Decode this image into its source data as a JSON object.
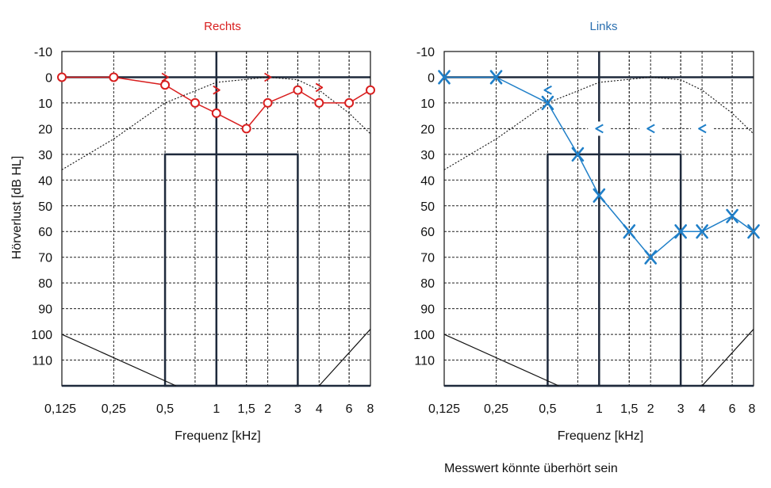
{
  "colors": {
    "right": "#d81e1e",
    "left": "#1f7fc8",
    "left_title": "#2a6fb0",
    "frame": "#1f2a3c",
    "grid": "#222222",
    "ink": "#111111"
  },
  "ylabel": "Hörverlust [dB HL]",
  "note": "Messwert könnte überhört sein",
  "chart_data": [
    {
      "type": "line",
      "title": "Rechts",
      "xlabel": "Frequenz [kHz]",
      "ylabel": "Hörverlust [dB HL]",
      "x_ticks": [
        "0,125",
        "0,25",
        "0,5",
        "1",
        "1,5",
        "2",
        "3",
        "4",
        "6",
        "8"
      ],
      "y_ticks": [
        "-10",
        "0",
        "10",
        "20",
        "30",
        "40",
        "50",
        "60",
        "70",
        "80",
        "90",
        "100",
        "110"
      ],
      "ylim": [
        -10,
        120
      ],
      "y_inverted": true,
      "x_scale": "log2",
      "grid": true,
      "series": [
        {
          "marker": "circle",
          "x": [
            0.125,
            0.25,
            0.5,
            0.75,
            1,
            1.5,
            2,
            3,
            4,
            6,
            8
          ],
          "y": [
            0,
            0,
            3,
            10,
            14,
            20,
            10,
            5,
            10,
            10,
            5
          ]
        },
        {
          "marker": "bone-conduction-right",
          "x": [
            0.5,
            1,
            2,
            4
          ],
          "y": [
            0,
            5,
            0,
            4
          ]
        }
      ]
    },
    {
      "type": "line",
      "title": "Links",
      "xlabel": "Frequenz [kHz]",
      "ylabel": "",
      "x_ticks": [
        "0,125",
        "0,25",
        "0,5",
        "1",
        "1,5",
        "2",
        "3",
        "4",
        "6",
        "8"
      ],
      "y_ticks": [
        "-10",
        "0",
        "10",
        "20",
        "30",
        "40",
        "50",
        "60",
        "70",
        "80",
        "90",
        "100",
        "110"
      ],
      "ylim": [
        -10,
        120
      ],
      "y_inverted": true,
      "x_scale": "log2",
      "grid": true,
      "series": [
        {
          "marker": "x",
          "x": [
            0.125,
            0.25,
            0.5,
            0.75,
            1,
            1.5,
            2,
            3,
            4,
            6,
            8
          ],
          "y": [
            0,
            0,
            10,
            30,
            46,
            60,
            70,
            60,
            60,
            54,
            60
          ]
        },
        {
          "marker": "bone-conduction-left",
          "x": [
            0.5,
            1,
            2,
            4
          ],
          "y": [
            5,
            20,
            20,
            20
          ]
        }
      ]
    }
  ]
}
